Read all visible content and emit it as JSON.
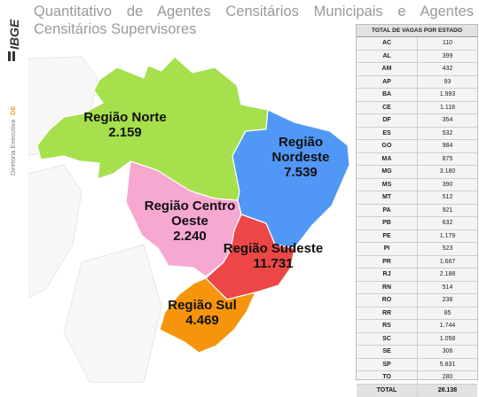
{
  "title": "Quantitativo de Agentes Censitários Municipais e Agentes Censitários Supervisores",
  "sidebar": {
    "logo_text": "IBGE",
    "department": "Diretoria Executiva",
    "department_code": "DE"
  },
  "colors": {
    "norte": "#a6e04c",
    "nordeste": "#5197f5",
    "centro_oeste": "#f7a8d0",
    "sudeste": "#ec4646",
    "sul": "#f6950c",
    "accent_orange": "#f29a2e"
  },
  "regions": [
    {
      "name": "Região Norte",
      "value": "2.159"
    },
    {
      "name": "Região Nordeste",
      "value": "7.539"
    },
    {
      "name": "Região Centro Oeste",
      "value": "2.240"
    },
    {
      "name": "Região Sudeste",
      "value": "11.731"
    },
    {
      "name": "Região Sul",
      "value": "4.469"
    }
  ],
  "table": {
    "header": "TOTAL DE VAGAS POR ESTADO",
    "rows": [
      {
        "state": "AC",
        "value": "110"
      },
      {
        "state": "AL",
        "value": "399"
      },
      {
        "state": "AM",
        "value": "432"
      },
      {
        "state": "AP",
        "value": "93"
      },
      {
        "state": "BA",
        "value": "1.993"
      },
      {
        "state": "CE",
        "value": "1.118"
      },
      {
        "state": "DF",
        "value": "354"
      },
      {
        "state": "ES",
        "value": "532"
      },
      {
        "state": "GO",
        "value": "984"
      },
      {
        "state": "MA",
        "value": "875"
      },
      {
        "state": "MG",
        "value": "3.180"
      },
      {
        "state": "MS",
        "value": "390"
      },
      {
        "state": "MT",
        "value": "512"
      },
      {
        "state": "PA",
        "value": "921"
      },
      {
        "state": "PB",
        "value": "632"
      },
      {
        "state": "PE",
        "value": "1.179"
      },
      {
        "state": "PI",
        "value": "523"
      },
      {
        "state": "PR",
        "value": "1.667"
      },
      {
        "state": "RJ",
        "value": "2.188"
      },
      {
        "state": "RN",
        "value": "514"
      },
      {
        "state": "RO",
        "value": "238"
      },
      {
        "state": "RR",
        "value": "85"
      },
      {
        "state": "RS",
        "value": "1.744"
      },
      {
        "state": "SC",
        "value": "1.058"
      },
      {
        "state": "SE",
        "value": "306"
      },
      {
        "state": "SP",
        "value": "5.831"
      },
      {
        "state": "TO",
        "value": "280"
      }
    ],
    "total_label": "TOTAL",
    "total_value": "28.138"
  }
}
